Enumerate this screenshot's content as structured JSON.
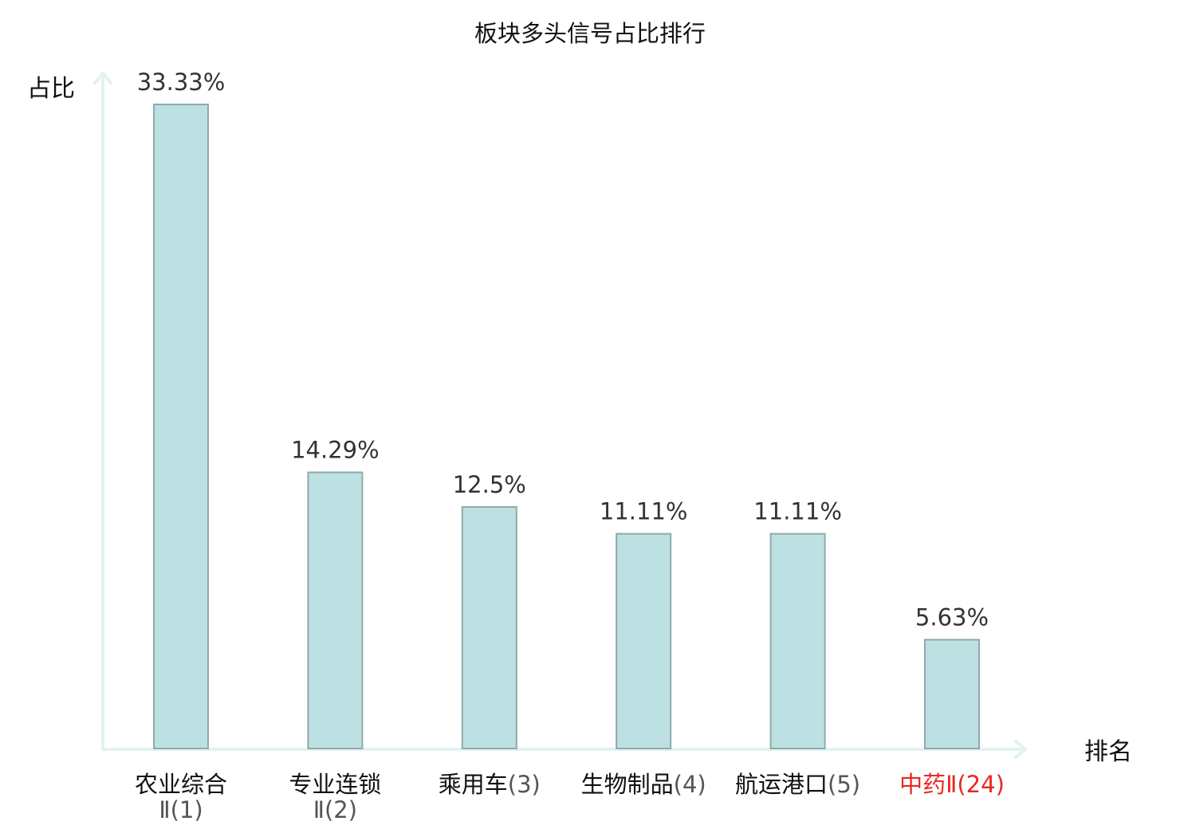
{
  "chart_data": {
    "type": "bar",
    "title": "板块多头信号占比排行",
    "ylabel": "占比",
    "xlabel": "排名",
    "ylim": [
      0,
      35
    ],
    "grid": false,
    "legend": "none",
    "categories": [
      {
        "main": "农业综合",
        "rank": "Ⅱ(1)",
        "highlight": false
      },
      {
        "main": "专业连锁",
        "rank": "Ⅱ(2)",
        "highlight": false
      },
      {
        "main": "乘用车",
        "rank": "(3)",
        "highlight": false
      },
      {
        "main": "生物制品",
        "rank": "(4)",
        "highlight": false
      },
      {
        "main": "航运港口",
        "rank": "(5)",
        "highlight": false
      },
      {
        "main": "中药",
        "rank": "Ⅱ(24)",
        "highlight": true
      }
    ],
    "values": [
      33.33,
      14.29,
      12.5,
      11.11,
      11.11,
      5.63
    ],
    "value_labels": [
      "33.33%",
      "14.29%",
      "12.5%",
      "11.11%",
      "11.11%",
      "5.63%"
    ],
    "colors": {
      "bar_fill": "#bde0e2",
      "bar_stroke": "#8faaab",
      "axis": "#e0f3f0",
      "highlight": "#e8281f"
    }
  }
}
